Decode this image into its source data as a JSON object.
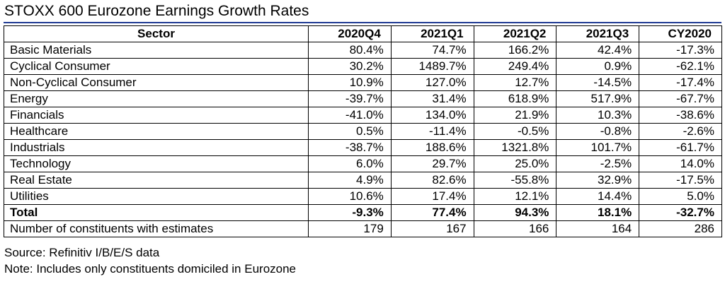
{
  "title": "STOXX 600 Eurozone Earnings Growth Rates",
  "table": {
    "headers": [
      "Sector",
      "2020Q4",
      "2021Q1",
      "2021Q2",
      "2021Q3",
      "CY2020"
    ],
    "rows": [
      {
        "sector": "Basic Materials",
        "values": [
          "80.4%",
          "74.7%",
          "166.2%",
          "42.4%",
          "-17.3%"
        ]
      },
      {
        "sector": "Cyclical Consumer",
        "values": [
          "30.2%",
          "1489.7%",
          "249.4%",
          "0.9%",
          "-62.1%"
        ]
      },
      {
        "sector": "Non-Cyclical Consumer",
        "values": [
          "10.9%",
          "127.0%",
          "12.7%",
          "-14.5%",
          "-17.4%"
        ]
      },
      {
        "sector": "Energy",
        "values": [
          "-39.7%",
          "31.4%",
          "618.9%",
          "517.9%",
          "-67.7%"
        ]
      },
      {
        "sector": "Financials",
        "values": [
          "-41.0%",
          "134.0%",
          "21.9%",
          "10.3%",
          "-38.6%"
        ]
      },
      {
        "sector": "Healthcare",
        "values": [
          "0.5%",
          "-11.4%",
          "-0.5%",
          "-0.8%",
          "-2.6%"
        ]
      },
      {
        "sector": "Industrials",
        "values": [
          "-38.7%",
          "188.6%",
          "1321.8%",
          "101.7%",
          "-61.7%"
        ]
      },
      {
        "sector": "Technology",
        "values": [
          "6.0%",
          "29.7%",
          "25.0%",
          "-2.5%",
          "14.0%"
        ]
      },
      {
        "sector": "Real Estate",
        "values": [
          "4.9%",
          "82.6%",
          "-55.8%",
          "32.9%",
          "-17.5%"
        ]
      },
      {
        "sector": "Utilities",
        "values": [
          "10.6%",
          "17.4%",
          "12.1%",
          "14.4%",
          "5.0%"
        ]
      }
    ],
    "total": {
      "sector": "Total",
      "values": [
        "-9.3%",
        "77.4%",
        "94.3%",
        "18.1%",
        "-32.7%"
      ]
    },
    "constituents": {
      "sector": "Number of constituents with estimates",
      "values": [
        "179",
        "167",
        "166",
        "164",
        "286"
      ]
    }
  },
  "notes": {
    "source": "Source: Refinitiv I/B/E/S data",
    "note": "Note: Includes only constituents domiciled in Eurozone"
  },
  "colors": {
    "title_rule": "#1f3a93",
    "grid_lines": "#000000"
  }
}
